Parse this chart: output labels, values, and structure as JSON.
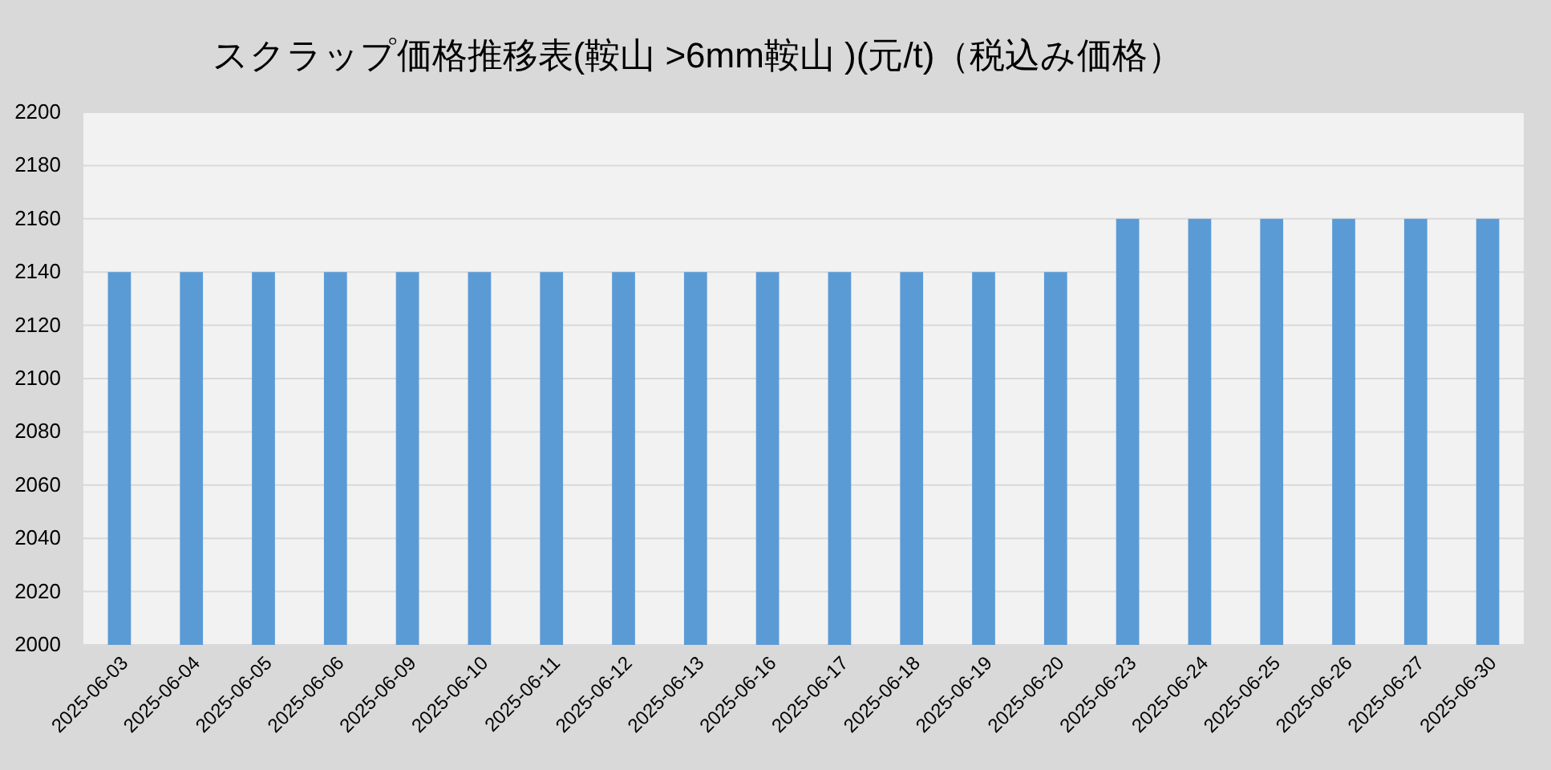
{
  "chart_data": {
    "type": "bar",
    "title": "スクラップ価格推移表(鞍山 >6mm鞍山 )(元/t)（税込み価格）",
    "categories": [
      "2025-06-03",
      "2025-06-04",
      "2025-06-05",
      "2025-06-06",
      "2025-06-09",
      "2025-06-10",
      "2025-06-11",
      "2025-06-12",
      "2025-06-13",
      "2025-06-16",
      "2025-06-17",
      "2025-06-18",
      "2025-06-19",
      "2025-06-20",
      "2025-06-23",
      "2025-06-24",
      "2025-06-25",
      "2025-06-26",
      "2025-06-27",
      "2025-06-30"
    ],
    "values": [
      2140,
      2140,
      2140,
      2140,
      2140,
      2140,
      2140,
      2140,
      2140,
      2140,
      2140,
      2140,
      2140,
      2140,
      2160,
      2160,
      2160,
      2160,
      2160,
      2160
    ],
    "color": "#5b9bd5",
    "ylim": [
      2000,
      2200
    ],
    "yticks": [
      2000,
      2020,
      2040,
      2060,
      2080,
      2100,
      2120,
      2140,
      2160,
      2180,
      2200
    ],
    "grid": "y"
  }
}
